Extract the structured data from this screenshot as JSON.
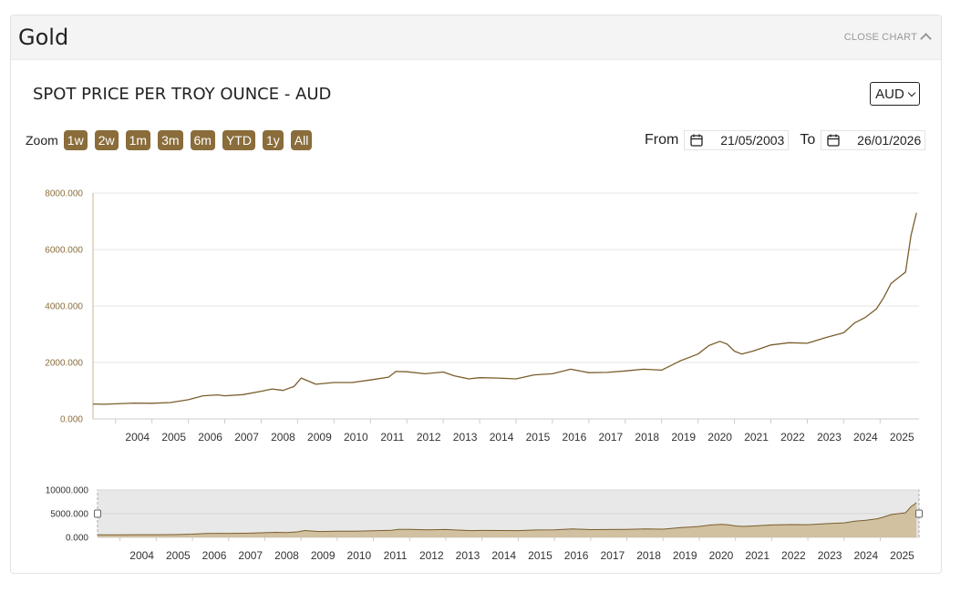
{
  "header": {
    "title": "Gold",
    "close_label": "CLOSE CHART"
  },
  "chart_title": "SPOT PRICE PER TROY OUNCE - AUD",
  "currency": {
    "selected": "AUD"
  },
  "zoom": {
    "label": "Zoom",
    "buttons": [
      "1w",
      "2w",
      "1m",
      "3m",
      "6m",
      "YTD",
      "1y",
      "All"
    ]
  },
  "date_range": {
    "from_label": "From",
    "from_value": "21/05/2003",
    "to_label": "To",
    "to_value": "26/01/2026"
  },
  "colors": {
    "accent": "#8a6d3b",
    "line": "#7a5e2c",
    "grid": "#e6e6e6",
    "tick_text": "#8a6d3b",
    "navigator_fill": "#e8e8e8"
  },
  "icons": {
    "calendar": "calendar-icon",
    "chevron_up": "chevron-up-icon",
    "chevron_down": "chevron-down-icon"
  },
  "chart_data": {
    "type": "line",
    "series": [
      {
        "x": [
          2003.38,
          2003.7,
          2004,
          2004.5,
          2005,
          2005.5,
          2006,
          2006.4,
          2006.8,
          2007,
          2007.5,
          2008,
          2008.3,
          2008.6,
          2008.9,
          2009.1,
          2009.5,
          2010,
          2010.5,
          2011,
          2011.5,
          2011.7,
          2012,
          2012.5,
          2013,
          2013.3,
          2013.7,
          2014,
          2014.5,
          2015,
          2015.5,
          2016,
          2016.5,
          2017,
          2017.5,
          2018,
          2018.5,
          2019,
          2019.5,
          2019.8,
          2020,
          2020.3,
          2020.6,
          2020.8,
          2021,
          2021.2,
          2021.5,
          2022,
          2022.5,
          2023,
          2023.5,
          2024,
          2024.3,
          2024.6,
          2024.9,
          2025.1,
          2025.3,
          2025.5,
          2025.7,
          2025.85,
          2026
        ],
        "values": [
          530,
          520,
          535,
          560,
          555,
          580,
          680,
          820,
          850,
          820,
          860,
          980,
          1060,
          1010,
          1150,
          1450,
          1230,
          1290,
          1290,
          1380,
          1480,
          1680,
          1670,
          1600,
          1660,
          1530,
          1420,
          1460,
          1450,
          1420,
          1560,
          1600,
          1760,
          1640,
          1650,
          1700,
          1760,
          1730,
          2050,
          2200,
          2300,
          2600,
          2750,
          2650,
          2400,
          2300,
          2400,
          2620,
          2700,
          2680,
          2880,
          3050,
          3400,
          3600,
          3900,
          4300,
          4800,
          5000,
          5200,
          6500,
          7300
        ]
      }
    ],
    "yaxis": {
      "ticks": [
        "0.000",
        "2000.000",
        "4000.000",
        "6000.000",
        "8000.000"
      ],
      "range": [
        0,
        8000
      ]
    },
    "xaxis": {
      "ticks": [
        "2004",
        "2005",
        "2006",
        "2007",
        "2008",
        "2009",
        "2010",
        "2011",
        "2012",
        "2013",
        "2014",
        "2015",
        "2016",
        "2017",
        "2018",
        "2019",
        "2020",
        "2021",
        "2022",
        "2023",
        "2024",
        "2025"
      ],
      "range": [
        2003.38,
        2026.07
      ]
    },
    "navigator": {
      "yticks": [
        "0.000",
        "5000.000",
        "10000.000"
      ],
      "range": [
        0,
        10000
      ]
    },
    "grid": true,
    "legend": "none"
  }
}
